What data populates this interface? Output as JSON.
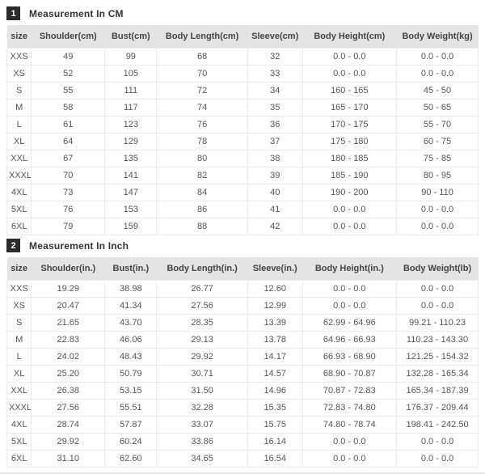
{
  "colors": {
    "header_band": "#e4e4e4",
    "row_border": "#ebebeb",
    "badge_background": "#2b2b2b",
    "badge_text": "#ffffff",
    "title_text": "#333333",
    "header_text": "#444444",
    "cell_text": "#555555"
  },
  "sections": [
    {
      "badge": "1",
      "title": "Measurement In CM",
      "columns": [
        "size",
        "Shoulder(cm)",
        "Bust(cm)",
        "Body Length(cm)",
        "Sleeve(cm)",
        "Body Height(cm)",
        "Body Weight(kg)"
      ],
      "rows": [
        [
          "XXS",
          "49",
          "99",
          "68",
          "32",
          "0.0 - 0.0",
          "0.0 - 0.0"
        ],
        [
          "XS",
          "52",
          "105",
          "70",
          "33",
          "0.0 - 0.0",
          "0.0 - 0.0"
        ],
        [
          "S",
          "55",
          "111",
          "72",
          "34",
          "160 - 165",
          "45 - 50"
        ],
        [
          "M",
          "58",
          "117",
          "74",
          "35",
          "165 - 170",
          "50 - 65"
        ],
        [
          "L",
          "61",
          "123",
          "76",
          "36",
          "170 - 175",
          "55 - 70"
        ],
        [
          "XL",
          "64",
          "129",
          "78",
          "37",
          "175 - 180",
          "60 - 75"
        ],
        [
          "XXL",
          "67",
          "135",
          "80",
          "38",
          "180 - 185",
          "75 - 85"
        ],
        [
          "XXXL",
          "70",
          "141",
          "82",
          "39",
          "185 - 190",
          "80 - 95"
        ],
        [
          "4XL",
          "73",
          "147",
          "84",
          "40",
          "190 - 200",
          "90 - 110"
        ],
        [
          "5XL",
          "76",
          "153",
          "86",
          "41",
          "0.0 - 0.0",
          "0.0 - 0.0"
        ],
        [
          "6XL",
          "79",
          "159",
          "88",
          "42",
          "0.0 - 0.0",
          "0.0 - 0.0"
        ]
      ]
    },
    {
      "badge": "2",
      "title": "Measurement In Inch",
      "columns": [
        "size",
        "Shoulder(in.)",
        "Bust(in.)",
        "Body Length(in.)",
        "Sleeve(in.)",
        "Body Height(in.)",
        "Body Weight(lb)"
      ],
      "rows": [
        [
          "XXS",
          "19.29",
          "38.98",
          "26.77",
          "12.60",
          "0.0 - 0.0",
          "0.0 - 0.0"
        ],
        [
          "XS",
          "20.47",
          "41.34",
          "27.56",
          "12.99",
          "0.0 - 0.0",
          "0.0 - 0.0"
        ],
        [
          "S",
          "21.65",
          "43.70",
          "28.35",
          "13.39",
          "62.99 - 64.96",
          "99.21 - 110.23"
        ],
        [
          "M",
          "22.83",
          "46.06",
          "29.13",
          "13.78",
          "64.96 - 66.93",
          "110.23 - 143.30"
        ],
        [
          "L",
          "24.02",
          "48.43",
          "29.92",
          "14.17",
          "66.93 - 68.90",
          "121.25 - 154.32"
        ],
        [
          "XL",
          "25.20",
          "50.79",
          "30.71",
          "14.57",
          "68.90 - 70.87",
          "132.28 - 165.34"
        ],
        [
          "XXL",
          "26.38",
          "53.15",
          "31.50",
          "14.96",
          "70.87 - 72.83",
          "165.34 - 187.39"
        ],
        [
          "XXXL",
          "27.56",
          "55.51",
          "32.28",
          "15.35",
          "72.83 - 74.80",
          "176.37 - 209.44"
        ],
        [
          "4XL",
          "28.74",
          "57.87",
          "33.07",
          "15.75",
          "74.80 - 78.74",
          "198.41 - 242.50"
        ],
        [
          "5XL",
          "29.92",
          "60.24",
          "33.86",
          "16.14",
          "0.0 - 0.0",
          "0.0 - 0.0"
        ],
        [
          "6XL",
          "31.10",
          "62.60",
          "34.65",
          "16.54",
          "0.0 - 0.0",
          "0.0 - 0.0"
        ]
      ]
    }
  ]
}
